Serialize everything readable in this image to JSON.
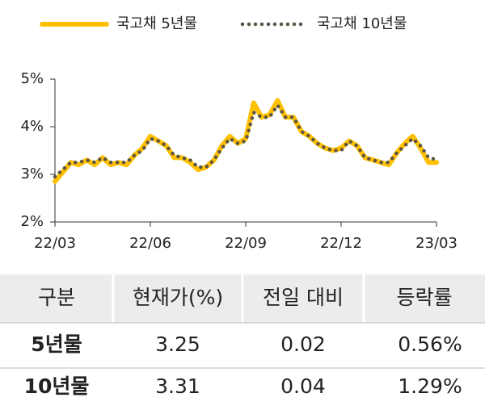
{
  "chart_data": {
    "type": "line",
    "x": [
      0,
      0.25,
      0.5,
      0.75,
      1,
      1.25,
      1.5,
      1.75,
      2,
      2.25,
      2.5,
      2.75,
      3,
      3.25,
      3.5,
      3.75,
      4,
      4.25,
      4.5,
      4.75,
      5,
      5.25,
      5.5,
      5.75,
      6,
      6.25,
      6.5,
      6.75,
      7,
      7.25,
      7.5,
      7.75,
      8,
      8.25,
      8.5,
      8.75,
      9,
      9.25,
      9.5,
      9.75,
      10,
      10.25,
      10.5,
      10.75,
      11,
      11.25,
      11.5,
      11.75,
      12
    ],
    "series": [
      {
        "name": "국고채 5년물",
        "color": "#ffc000",
        "values": [
          2.85,
          3.05,
          3.25,
          3.2,
          3.3,
          3.2,
          3.35,
          3.2,
          3.25,
          3.2,
          3.4,
          3.55,
          3.8,
          3.7,
          3.6,
          3.35,
          3.35,
          3.25,
          3.1,
          3.15,
          3.3,
          3.6,
          3.8,
          3.65,
          3.75,
          4.5,
          4.2,
          4.25,
          4.55,
          4.2,
          4.2,
          3.9,
          3.8,
          3.65,
          3.55,
          3.5,
          3.55,
          3.7,
          3.6,
          3.35,
          3.3,
          3.25,
          3.2,
          3.45,
          3.65,
          3.8,
          3.55,
          3.25,
          3.25
        ]
      },
      {
        "name": "국고채 10년물",
        "color": "#5c5444",
        "values": [
          2.95,
          3.1,
          3.25,
          3.25,
          3.3,
          3.25,
          3.35,
          3.25,
          3.25,
          3.25,
          3.4,
          3.5,
          3.75,
          3.7,
          3.6,
          3.4,
          3.35,
          3.3,
          3.15,
          3.15,
          3.3,
          3.55,
          3.75,
          3.65,
          3.7,
          4.3,
          4.2,
          4.2,
          4.45,
          4.2,
          4.2,
          3.9,
          3.8,
          3.65,
          3.55,
          3.5,
          3.5,
          3.7,
          3.6,
          3.35,
          3.3,
          3.25,
          3.25,
          3.45,
          3.6,
          3.75,
          3.6,
          3.35,
          3.31
        ]
      }
    ],
    "xlim": [
      0,
      12
    ],
    "xticks": [
      {
        "value": 0,
        "label": "22/03"
      },
      {
        "value": 3,
        "label": "22/06"
      },
      {
        "value": 6,
        "label": "22/09"
      },
      {
        "value": 9,
        "label": "22/12"
      },
      {
        "value": 12,
        "label": "23/03"
      }
    ],
    "ylim": [
      2,
      5
    ],
    "yticks": [
      {
        "value": 2,
        "label": "2%"
      },
      {
        "value": 3,
        "label": "3%"
      },
      {
        "value": 4,
        "label": "4%"
      },
      {
        "value": 5,
        "label": "5%"
      }
    ],
    "legend": "top"
  },
  "table": {
    "header": [
      "구분",
      "현재가(%)",
      "전일 대비",
      "등락률"
    ],
    "rows": [
      [
        "5년물",
        "3.25",
        "0.02",
        "0.56%"
      ],
      [
        "10년물",
        "3.31",
        "0.04",
        "1.29%"
      ]
    ]
  }
}
